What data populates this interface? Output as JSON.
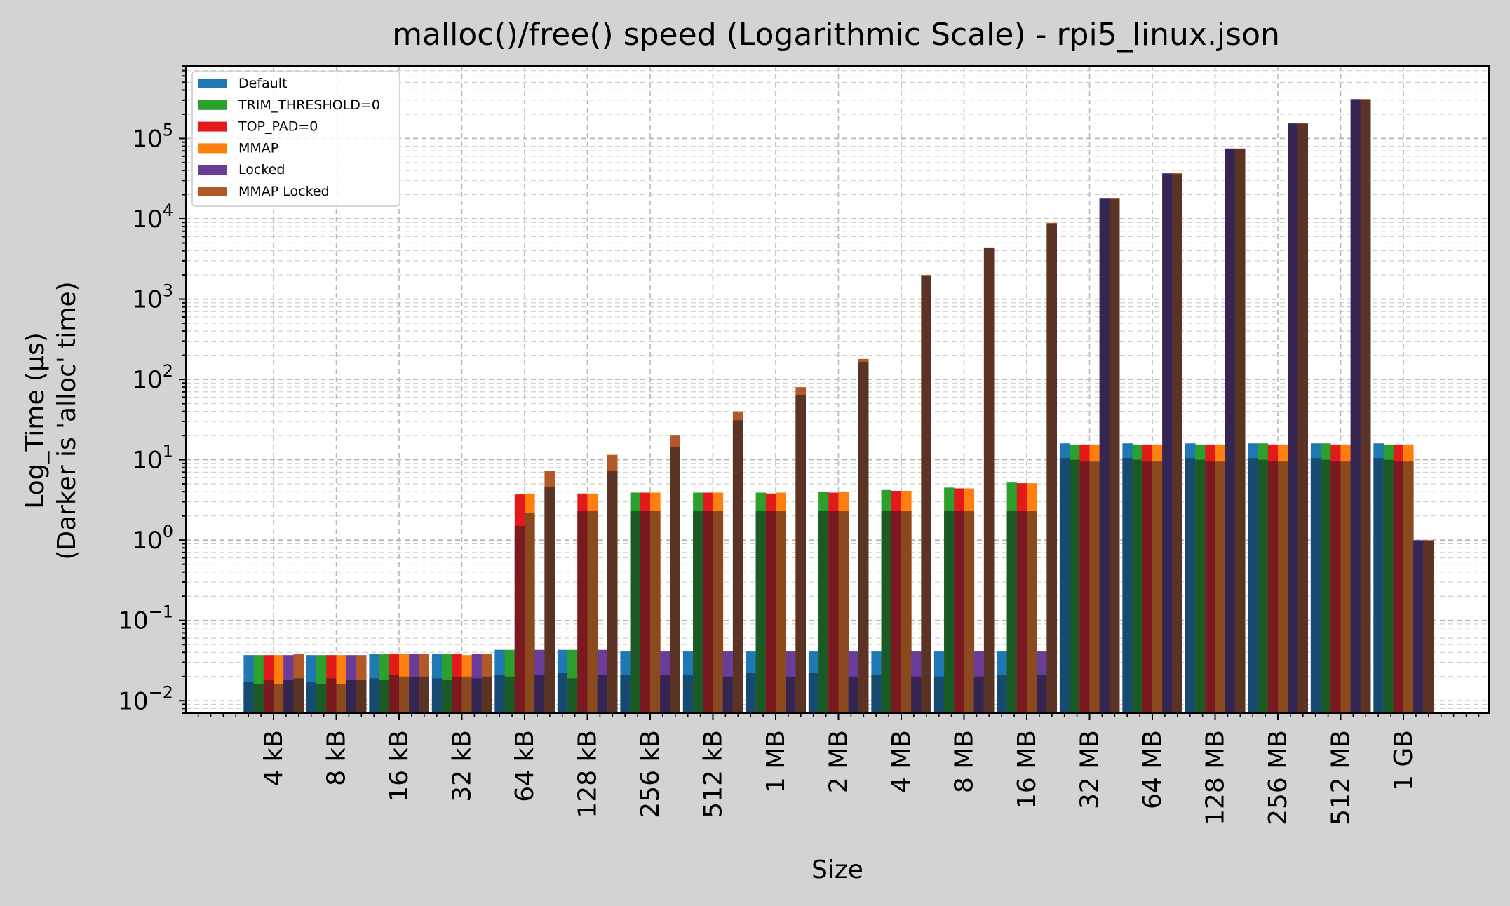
{
  "chart_data": {
    "type": "bar",
    "title": "malloc()/free() speed (Logarithmic Scale) - rpi5_linux.json",
    "xlabel": "Size",
    "ylabel_line1": "Log_Time (µs)",
    "ylabel_line2": "(Darker is 'alloc' time)",
    "yscale": "log",
    "ylim": [
      0.007,
      800000
    ],
    "y_ticks": [
      {
        "value": 0.01,
        "base": "10",
        "exp": "−2"
      },
      {
        "value": 0.1,
        "base": "10",
        "exp": "−1"
      },
      {
        "value": 1,
        "base": "10",
        "exp": "0"
      },
      {
        "value": 10,
        "base": "10",
        "exp": "1"
      },
      {
        "value": 100,
        "base": "10",
        "exp": "2"
      },
      {
        "value": 1000,
        "base": "10",
        "exp": "3"
      },
      {
        "value": 10000,
        "base": "10",
        "exp": "4"
      },
      {
        "value": 100000,
        "base": "10",
        "exp": "5"
      }
    ],
    "grid": true,
    "legend_position": "upper-left",
    "note": "",
    "categories": [
      "4 kB",
      "8 kB",
      "16 kB",
      "32 kB",
      "64 kB",
      "128 kB",
      "256 kB",
      "512 kB",
      "1 MB",
      "2 MB",
      "4 MB",
      "8 MB",
      "16 MB",
      "32 MB",
      "64 MB",
      "128 MB",
      "256 MB",
      "512 MB",
      "1 GB"
    ],
    "series": [
      {
        "name": "Default",
        "color": "#1f77b4",
        "dark_color": "#164a70",
        "total": [
          0.037,
          0.037,
          0.038,
          0.038,
          0.043,
          0.043,
          0.041,
          0.041,
          0.041,
          0.041,
          0.041,
          0.041,
          0.041,
          16,
          16,
          16,
          16,
          16,
          16
        ],
        "alloc": [
          0.017,
          0.017,
          0.019,
          0.019,
          0.021,
          0.022,
          0.021,
          0.021,
          0.022,
          0.022,
          0.021,
          0.02,
          0.021,
          10.5,
          10.5,
          10.5,
          10.5,
          10.5,
          10.5
        ]
      },
      {
        "name": "TRIM_THRESHOLD=0",
        "color": "#2ca02c",
        "dark_color": "#1c5a25",
        "total": [
          0.037,
          0.037,
          0.038,
          0.038,
          0.043,
          0.043,
          3.9,
          3.9,
          3.9,
          4.0,
          4.2,
          4.5,
          5.2,
          15.5,
          15.5,
          15.5,
          16,
          16,
          15.5
        ],
        "alloc": [
          0.016,
          0.016,
          0.018,
          0.018,
          0.02,
          0.019,
          2.3,
          2.3,
          2.3,
          2.3,
          2.3,
          2.3,
          2.3,
          10,
          10,
          10,
          10,
          10,
          10
        ]
      },
      {
        "name": "TOP_PAD=0",
        "color": "#e31a1c",
        "dark_color": "#7a1a20",
        "total": [
          0.037,
          0.037,
          0.038,
          0.038,
          3.7,
          3.8,
          3.9,
          3.9,
          3.8,
          3.9,
          4.1,
          4.4,
          5.1,
          15.5,
          15.5,
          15.5,
          15.5,
          15.5,
          15.5
        ],
        "alloc": [
          0.018,
          0.019,
          0.021,
          0.02,
          1.5,
          2.3,
          2.3,
          2.3,
          2.3,
          2.3,
          2.3,
          2.3,
          2.3,
          9.5,
          9.5,
          9.5,
          9.5,
          9.5,
          9.5
        ]
      },
      {
        "name": "MMAP",
        "color": "#ff7f0e",
        "dark_color": "#8a4a1e",
        "total": [
          0.037,
          0.037,
          0.038,
          0.037,
          3.8,
          3.8,
          3.9,
          3.9,
          3.9,
          4.0,
          4.1,
          4.4,
          5.1,
          15.5,
          15.5,
          15.5,
          15.5,
          15.5,
          15.5
        ],
        "alloc": [
          0.016,
          0.016,
          0.02,
          0.02,
          2.2,
          2.3,
          2.3,
          2.3,
          2.3,
          2.3,
          2.3,
          2.3,
          2.3,
          9.5,
          9.5,
          9.5,
          9.5,
          9.5,
          9.5
        ]
      },
      {
        "name": "Locked",
        "color": "#6a3d9a",
        "dark_color": "#352552",
        "total": [
          0.037,
          0.037,
          0.038,
          0.038,
          0.043,
          0.043,
          0.041,
          0.041,
          0.041,
          0.041,
          0.041,
          0.041,
          0.041,
          18000,
          37000,
          75000,
          155000,
          310000,
          1.0
        ],
        "alloc": [
          0.018,
          0.018,
          0.02,
          0.019,
          0.021,
          0.021,
          0.021,
          0.02,
          0.02,
          0.02,
          0.02,
          0.02,
          0.021,
          17500,
          36000,
          74000,
          152000,
          305000,
          0.98
        ]
      },
      {
        "name": "MMAP Locked",
        "color": "#b15928",
        "dark_color": "#5a3325",
        "total": [
          0.038,
          0.037,
          0.038,
          0.038,
          7.2,
          11.5,
          20,
          40,
          80,
          180,
          2000,
          4400,
          8900,
          18000,
          37000,
          75000,
          155000,
          310000,
          1.0
        ],
        "alloc": [
          0.019,
          0.018,
          0.02,
          0.02,
          4.6,
          7.3,
          14.5,
          31,
          64,
          165,
          1950,
          4300,
          8700,
          17500,
          36000,
          74000,
          152000,
          305000,
          0.98
        ]
      }
    ]
  }
}
